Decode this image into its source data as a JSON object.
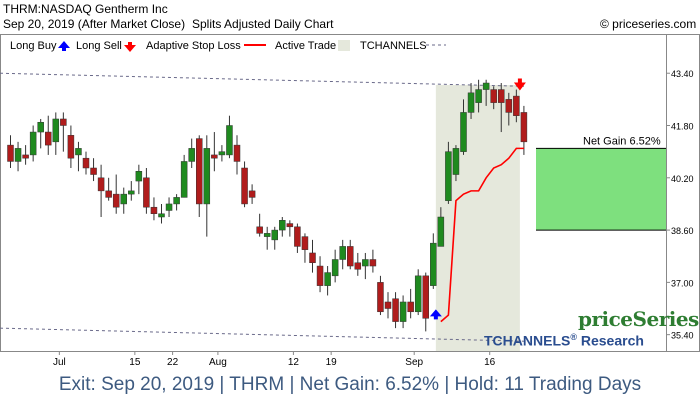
{
  "header": {
    "symbol_line": "THRM:NASDAQ Gentherm Inc",
    "date_line": "Sep 20, 2019 (After Market Close)",
    "chart_desc": "Splits Adjusted Daily Chart",
    "copyright": "© priceseries.com"
  },
  "legend": {
    "long_buy": "Long Buy",
    "long_sell": "Long Sell",
    "adaptive_stop": "Adaptive Stop Loss",
    "active_trade": "Active Trade",
    "tchannels": "TCHANNELS"
  },
  "watermark": {
    "brand": "priceSeries",
    "research_prefix": "TCHANNELS",
    "research_suffix": "Research",
    "registered": "®"
  },
  "net_gain_label": "Net Gain 6.52%",
  "footer_text": "Exit: Sep 20, 2019 | THRM | Net Gain: 6.52% | Hold: 11 Trading Days",
  "colors": {
    "up": "#1f8a1f",
    "down": "#b01c1c",
    "stop_line": "#ff0000",
    "active_region": "#e5e8dc",
    "gain_box": "#7ee07e",
    "channel": "#6a6a8a",
    "buy_arrow": "#0000ff",
    "sell_arrow": "#ff0000"
  },
  "chart_data": {
    "type": "candlestick",
    "y_ticks": [
      "43.40",
      "41.80",
      "40.20",
      "38.60",
      "37.00",
      "35.40"
    ],
    "y_range": [
      34.9,
      44.6
    ],
    "x_labels": [
      {
        "label": "Jul",
        "index": 7
      },
      {
        "label": "15",
        "index": 17
      },
      {
        "label": "22",
        "index": 22
      },
      {
        "label": "Aug",
        "index": 28
      },
      {
        "label": "12",
        "index": 38
      },
      {
        "label": "19",
        "index": 43
      },
      {
        "label": "Sep",
        "index": 54
      },
      {
        "label": "16",
        "index": 64
      }
    ],
    "candles": [
      [
        41.2,
        41.5,
        40.5,
        40.7
      ],
      [
        40.7,
        41.3,
        40.4,
        41.1
      ],
      [
        40.9,
        41.2,
        40.6,
        40.8
      ],
      [
        40.9,
        41.8,
        40.7,
        41.6
      ],
      [
        41.6,
        42.0,
        41.1,
        41.9
      ],
      [
        41.6,
        42.1,
        40.9,
        41.2
      ],
      [
        41.3,
        42.2,
        40.9,
        42.0
      ],
      [
        42.0,
        42.2,
        41.0,
        41.8
      ],
      [
        41.5,
        41.8,
        40.5,
        40.8
      ],
      [
        40.9,
        41.3,
        40.4,
        41.1
      ],
      [
        40.8,
        41.0,
        40.3,
        40.5
      ],
      [
        40.5,
        40.8,
        40.1,
        40.3
      ],
      [
        40.2,
        40.6,
        39.0,
        39.8
      ],
      [
        39.8,
        40.2,
        39.5,
        39.6
      ],
      [
        39.7,
        40.3,
        39.1,
        39.3
      ],
      [
        39.4,
        39.9,
        39.1,
        39.7
      ],
      [
        39.7,
        40.1,
        39.5,
        39.8
      ],
      [
        40.1,
        40.6,
        39.7,
        40.4
      ],
      [
        40.2,
        40.5,
        39.1,
        39.3
      ],
      [
        39.3,
        39.6,
        38.9,
        39.1
      ],
      [
        39.0,
        39.4,
        38.8,
        39.1
      ],
      [
        39.2,
        39.6,
        39.0,
        39.4
      ],
      [
        39.4,
        39.7,
        39.2,
        39.6
      ],
      [
        39.6,
        40.9,
        39.6,
        40.7
      ],
      [
        40.7,
        41.4,
        40.5,
        41.1
      ],
      [
        41.4,
        41.5,
        39.0,
        39.4
      ],
      [
        39.4,
        41.5,
        38.4,
        41.1
      ],
      [
        40.9,
        41.6,
        40.4,
        40.8
      ],
      [
        40.9,
        41.2,
        40.7,
        41.0
      ],
      [
        40.9,
        42.1,
        40.8,
        41.8
      ],
      [
        41.2,
        41.5,
        40.3,
        40.7
      ],
      [
        40.5,
        40.7,
        39.3,
        39.4
      ],
      [
        39.8,
        40.0,
        39.4,
        39.6
      ],
      [
        38.7,
        39.1,
        38.4,
        38.5
      ],
      [
        38.4,
        38.7,
        38.0,
        38.5
      ],
      [
        38.3,
        38.7,
        38.0,
        38.6
      ],
      [
        38.6,
        39.0,
        38.4,
        38.9
      ],
      [
        38.8,
        38.9,
        38.4,
        38.7
      ],
      [
        38.7,
        38.8,
        37.9,
        38.1
      ],
      [
        38.4,
        38.5,
        37.6,
        38.0
      ],
      [
        37.9,
        38.3,
        37.3,
        37.6
      ],
      [
        37.5,
        37.8,
        36.7,
        36.9
      ],
      [
        36.9,
        37.5,
        36.6,
        37.3
      ],
      [
        37.2,
        38.0,
        37.0,
        37.7
      ],
      [
        37.7,
        38.3,
        37.4,
        38.1
      ],
      [
        38.1,
        38.3,
        37.4,
        37.5
      ],
      [
        37.6,
        37.9,
        37.2,
        37.4
      ],
      [
        37.5,
        37.9,
        37.1,
        37.7
      ],
      [
        37.7,
        38.0,
        37.3,
        37.5
      ],
      [
        37.0,
        37.2,
        36.0,
        36.1
      ],
      [
        36.4,
        36.7,
        35.9,
        36.2
      ],
      [
        36.5,
        36.7,
        35.6,
        35.8
      ],
      [
        35.8,
        36.6,
        35.6,
        36.4
      ],
      [
        36.4,
        36.8,
        35.9,
        36.1
      ],
      [
        36.1,
        37.4,
        36.0,
        37.2
      ],
      [
        37.2,
        37.3,
        35.5,
        35.9
      ],
      [
        36.9,
        38.5,
        36.8,
        38.2
      ],
      [
        38.1,
        39.3,
        38.1,
        39.0
      ],
      [
        39.5,
        41.3,
        39.4,
        41.0
      ],
      [
        40.3,
        41.2,
        40.1,
        41.1
      ],
      [
        41.0,
        42.6,
        40.9,
        42.2
      ],
      [
        42.2,
        43.1,
        42.0,
        42.8
      ],
      [
        42.5,
        43.2,
        42.2,
        42.9
      ],
      [
        42.9,
        43.2,
        42.4,
        43.1
      ],
      [
        42.9,
        43.0,
        42.3,
        42.5
      ],
      [
        42.9,
        43.1,
        41.6,
        42.5
      ],
      [
        42.6,
        42.8,
        41.8,
        42.2
      ],
      [
        42.7,
        42.9,
        41.9,
        42.1
      ],
      [
        42.2,
        42.4,
        40.9,
        41.3
      ]
    ],
    "trade_start_index": 57,
    "trade_end_index": 68,
    "stop_loss": [
      {
        "index": 57,
        "value": 35.8
      },
      {
        "index": 58,
        "value": 36.0
      },
      {
        "index": 59,
        "value": 39.5
      },
      {
        "index": 60,
        "value": 39.7
      },
      {
        "index": 61,
        "value": 39.8
      },
      {
        "index": 62,
        "value": 39.8
      },
      {
        "index": 63,
        "value": 40.2
      },
      {
        "index": 64,
        "value": 40.5
      },
      {
        "index": 65,
        "value": 40.6
      },
      {
        "index": 66,
        "value": 40.8
      },
      {
        "index": 67,
        "value": 41.1
      },
      {
        "index": 68,
        "value": 41.1
      }
    ],
    "channel_upper": [
      {
        "index": 0,
        "value": 43.4
      },
      {
        "index": 68,
        "value": 43.0
      }
    ],
    "channel_lower": [
      {
        "index": 0,
        "value": 35.6
      },
      {
        "index": 68,
        "value": 35.2
      }
    ],
    "buy_signal": {
      "index": 57,
      "value": 35.9
    },
    "sell_signal": {
      "index": 68,
      "value": 42.9
    },
    "gain_box": {
      "from": 38.6,
      "to": 41.1
    }
  }
}
